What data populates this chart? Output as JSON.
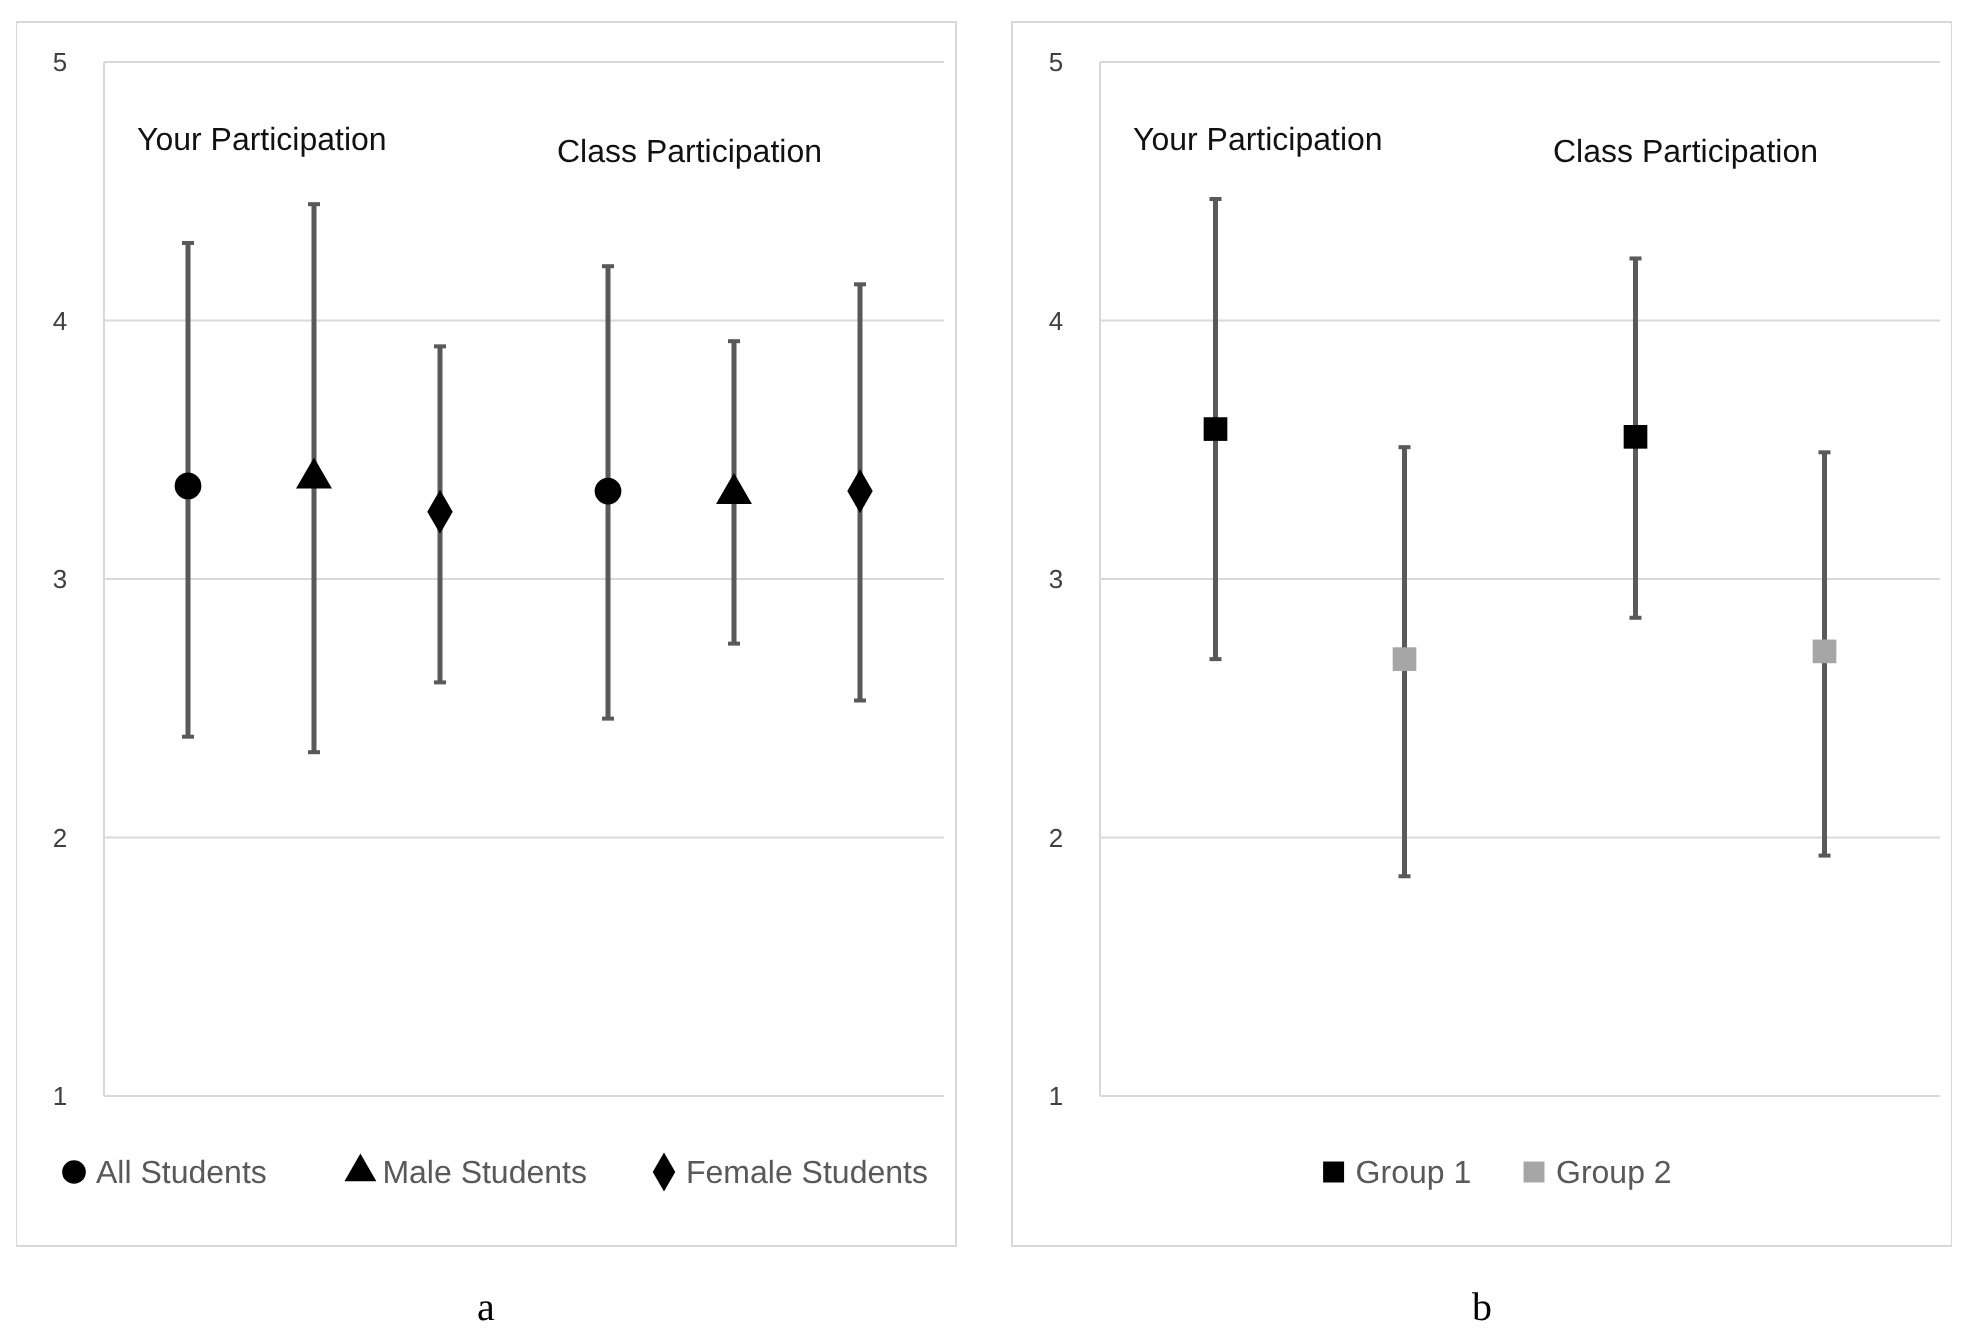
{
  "chart_data": [
    {
      "type": "scatter",
      "categories": [
        null,
        null
      ],
      "ylim": [
        1,
        5
      ],
      "yticks": [
        1,
        2,
        3,
        4,
        5
      ],
      "grid": "y",
      "legend": "bottom",
      "annotations": [
        "Your Participation",
        "Class Participation",
        "a"
      ],
      "series": [
        {
          "name": "All Students",
          "color": "#000000",
          "marker": "circle",
          "values": [
            3.36,
            3.34
          ],
          "errors": [
            [
              2.39,
              4.3
            ],
            [
              2.46,
              4.21
            ]
          ]
        },
        {
          "name": "Male Students",
          "color": "#000000",
          "marker": "triangle",
          "values": [
            3.39,
            3.33
          ],
          "errors": [
            [
              2.33,
              4.45
            ],
            [
              2.75,
              3.92
            ]
          ]
        },
        {
          "name": "Female Students",
          "color": "#000000",
          "marker": "diamond",
          "values": [
            3.26,
            3.34
          ],
          "errors": [
            [
              2.6,
              3.9
            ],
            [
              2.53,
              4.14
            ]
          ]
        }
      ]
    },
    {
      "type": "scatter",
      "categories": [
        null,
        null
      ],
      "ylim": [
        1,
        5
      ],
      "yticks": [
        1,
        2,
        3,
        4,
        5
      ],
      "grid": "y",
      "legend": "bottom",
      "annotations": [
        "Your Participation",
        "Class Participation",
        "b"
      ],
      "series": [
        {
          "name": "Group 1",
          "color": "#000000",
          "marker": "square",
          "values": [
            3.58,
            3.55
          ],
          "errors": [
            [
              2.69,
              4.47
            ],
            [
              2.85,
              4.24
            ]
          ]
        },
        {
          "name": "Group 2",
          "color": "#a6a6a6",
          "marker": "square",
          "values": [
            2.69,
            2.72
          ],
          "errors": [
            [
              1.85,
              3.51
            ],
            [
              1.93,
              3.49
            ]
          ]
        }
      ]
    }
  ]
}
